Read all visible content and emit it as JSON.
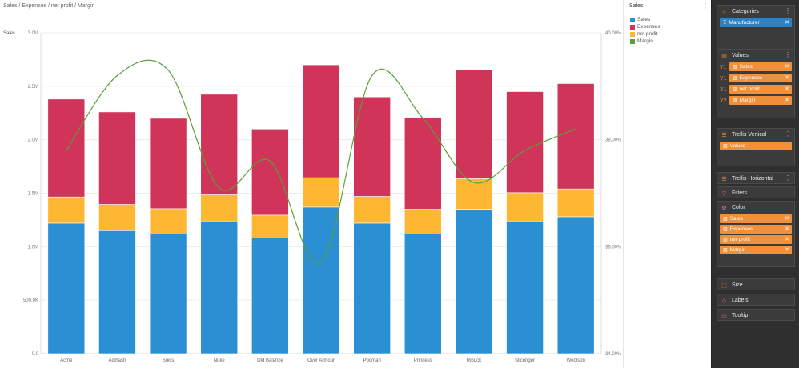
{
  "breadcrumb": "Sales / Expenses / net profit / Margin",
  "colors": {
    "sales": "#2b8fd4",
    "expenses": "#d13459",
    "net_profit": "#fdb733",
    "margin": "#5a9f3a"
  },
  "legend": {
    "title": "Sales",
    "items": [
      {
        "label": "Sales",
        "color": "#2b8fd4"
      },
      {
        "label": "Expenses",
        "color": "#d13459"
      },
      {
        "label": "net profit",
        "color": "#fdb733"
      },
      {
        "label": "Margin",
        "color": "#5a9f3a"
      }
    ]
  },
  "panel": {
    "categories": {
      "title": "Categories",
      "pill": "Manufacturer"
    },
    "values": {
      "title": "Values",
      "pills": [
        {
          "axis": "Y1",
          "label": "Sales"
        },
        {
          "axis": "Y1",
          "label": "Expenses"
        },
        {
          "axis": "Y1",
          "label": "net profit"
        },
        {
          "axis": "Y2",
          "label": "Margin"
        }
      ]
    },
    "trellis_vertical": {
      "title": "Trellis Vertical",
      "pill": "Values"
    },
    "trellis_horizontal": {
      "title": "Trellis Horizontal"
    },
    "filters": {
      "title": "Filters"
    },
    "color": {
      "title": "Color",
      "pills": [
        "Sales",
        "Expenses",
        "net profit",
        "Margin"
      ]
    },
    "size": {
      "title": "Size"
    },
    "labels": {
      "title": "Labels"
    },
    "tooltip": {
      "title": "Tooltip"
    }
  },
  "chart_data": {
    "type": "bar",
    "stacked": true,
    "ylabel": "Sales",
    "ylim": [
      0,
      3000000
    ],
    "y_ticks": [
      "0.0",
      "500.0K",
      "1.0M",
      "1.5M",
      "2.0M",
      "2.5M",
      "3.0M"
    ],
    "y2lim": [
      0.34,
      0.4
    ],
    "y2_ticks": [
      "34.00%",
      "36.00%",
      "38.00%",
      "40.00%"
    ],
    "categories": [
      "Acme",
      "Adihash",
      "Snics",
      "Nuke",
      "Old Balance",
      "Over Armour",
      "Poomah",
      "Princess",
      "Ribuck",
      "Slicenger",
      "Woolson"
    ],
    "series": [
      {
        "name": "Sales",
        "values": [
          1220000,
          1150000,
          1120000,
          1240000,
          1080000,
          1370000,
          1220000,
          1120000,
          1350000,
          1240000,
          1280000
        ]
      },
      {
        "name": "net profit",
        "values": [
          245000,
          245000,
          235000,
          245000,
          215000,
          275000,
          250000,
          230000,
          285000,
          265000,
          260000
        ]
      },
      {
        "name": "Expenses",
        "values": [
          915000,
          865000,
          845000,
          940000,
          805000,
          1055000,
          930000,
          860000,
          1020000,
          945000,
          985000
        ]
      },
      {
        "name": "Margin",
        "axis": "y2",
        "values": [
          0.378,
          0.392,
          0.393,
          0.371,
          0.376,
          0.357,
          0.392,
          0.384,
          0.372,
          0.378,
          0.382
        ]
      }
    ],
    "grid": true,
    "legend": "right"
  }
}
